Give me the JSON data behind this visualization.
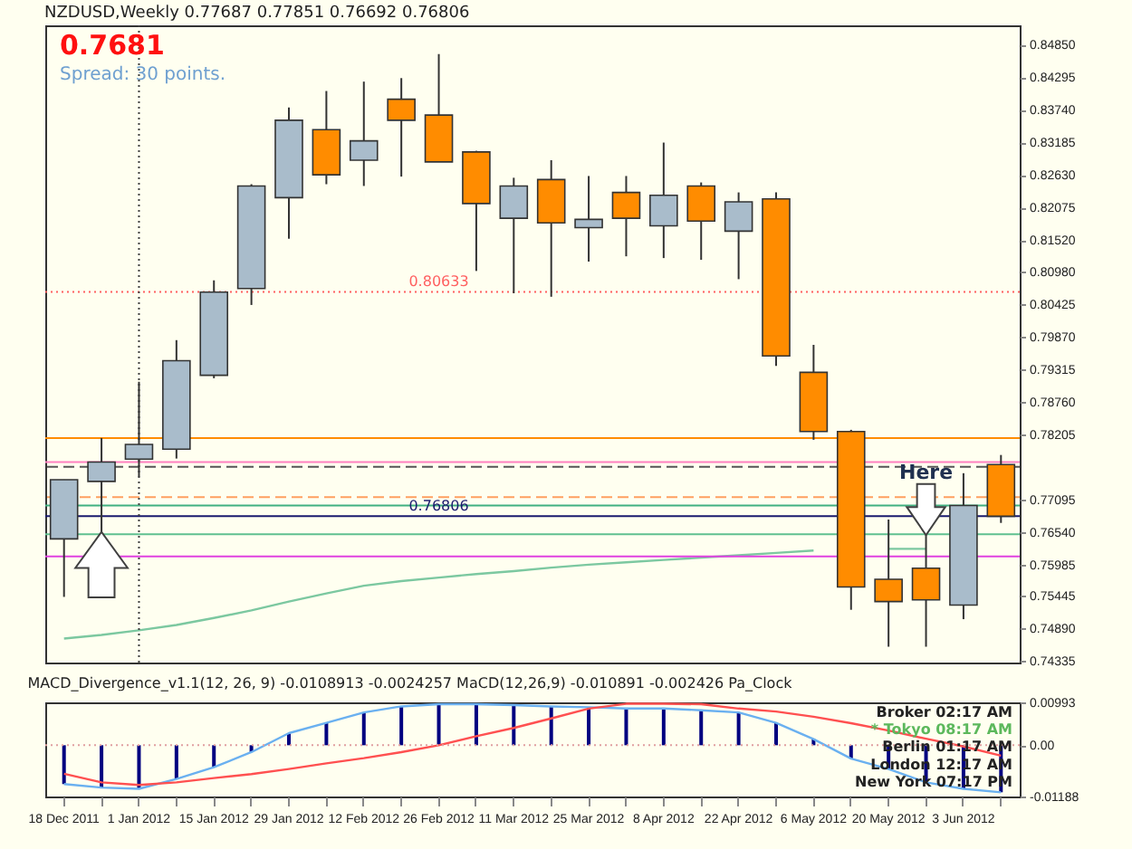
{
  "chart_data": [
    {
      "type": "candlestick",
      "title": "NZDUSD,Weekly 0.77687 0.77851 0.76692 0.76806",
      "annotations": [
        "0.7681",
        "Spread: 30 points.",
        "Here"
      ],
      "categories": [
        "18 Dec 2011",
        null,
        "1 Jan 2012",
        null,
        "15 Jan 2012",
        null,
        "29 Jan 2012",
        null,
        "12 Feb 2012",
        null,
        "26 Feb 2012",
        null,
        "11 Mar 2012",
        null,
        "25 Mar 2012",
        null,
        "8 Apr 2012",
        null,
        "22 Apr 2012",
        null,
        "6 May 2012",
        null,
        "20 May 2012",
        null,
        "3 Jun 2012",
        null
      ],
      "ohlc": [
        [
          0.7642,
          0.7743,
          0.7543,
          0.7743
        ],
        [
          0.774,
          0.7814,
          0.765,
          0.7773
        ],
        [
          0.7778,
          0.791,
          0.7748,
          0.7803
        ],
        [
          0.7795,
          0.7981,
          0.7779,
          0.7946
        ],
        [
          0.7921,
          0.8083,
          0.7916,
          0.8063
        ],
        [
          0.8069,
          0.8247,
          0.8041,
          0.8244
        ],
        [
          0.8224,
          0.8378,
          0.8154,
          0.8356
        ],
        [
          0.834,
          0.8406,
          0.8247,
          0.8263
        ],
        [
          0.8288,
          0.8422,
          0.8244,
          0.8321
        ],
        [
          0.8392,
          0.8428,
          0.826,
          0.8356
        ],
        [
          0.8365,
          0.8469,
          0.8285,
          0.8285
        ],
        [
          0.8302,
          0.8304,
          0.8099,
          0.8214
        ],
        [
          0.8189,
          0.8258,
          0.8061,
          0.8244
        ],
        [
          0.8255,
          0.8288,
          0.8055,
          0.8181
        ],
        [
          0.8173,
          0.8261,
          0.8115,
          0.8187
        ],
        [
          0.8233,
          0.8261,
          0.8124,
          0.8189
        ],
        [
          0.8176,
          0.8318,
          0.8121,
          0.8228
        ],
        [
          0.8244,
          0.825,
          0.8118,
          0.8184
        ],
        [
          0.8167,
          0.8233,
          0.8085,
          0.8217
        ],
        [
          0.8222,
          0.8233,
          0.7937,
          0.7954
        ],
        [
          0.7926,
          0.7973,
          0.7811,
          0.7825
        ],
        [
          0.7825,
          0.7828,
          0.7521,
          0.756
        ],
        [
          0.7573,
          0.7675,
          0.7458,
          0.7535
        ],
        [
          0.7592,
          0.7653,
          0.7458,
          0.7538
        ],
        [
          0.7529,
          0.7754,
          0.7505,
          0.7699
        ],
        [
          0.77687,
          0.77851,
          0.76692,
          0.76806
        ]
      ],
      "colors": [
        "#a9bccb",
        "#a9bccb",
        "#a9bccb",
        "#a9bccb",
        "#a9bccb",
        "#a9bccb",
        "#a9bccb",
        "#ff8c00",
        "#a9bccb",
        "#ff8c00",
        "#ff8c00",
        "#ff8c00",
        "#a9bccb",
        "#ff8c00",
        "#a9bccb",
        "#ff8c00",
        "#a9bccb",
        "#ff8c00",
        "#a9bccb",
        "#ff8c00",
        "#ff8c00",
        "#ff8c00",
        "#ff8c00",
        "#ff8c00",
        "#a9bccb",
        "#ff8c00"
      ],
      "series": [
        {
          "type": "line",
          "color": "#7cc8a0",
          "values": [
            0.7472,
            0.7478,
            0.7486,
            0.7495,
            0.7507,
            0.752,
            0.7535,
            0.7549,
            0.7562,
            0.757,
            0.7576,
            0.7582,
            0.7587,
            0.7593,
            0.7598,
            0.7602,
            0.7606,
            0.761,
            0.7614,
            0.7618,
            0.7622,
            null,
            0.7625,
            0.7625,
            null,
            null
          ]
        }
      ],
      "ylim": [
        0.7431,
        0.8518
      ],
      "yticks": [
        {
          "value": 0.8485,
          "label": "0.84850"
        },
        {
          "value": 0.84295,
          "label": "0.84295"
        },
        {
          "value": 0.8374,
          "label": "0.83740"
        },
        {
          "value": 0.83185,
          "label": "0.83185"
        },
        {
          "value": 0.8263,
          "label": "0.82630"
        },
        {
          "value": 0.82075,
          "label": "0.82075"
        },
        {
          "value": 0.8152,
          "label": "0.81520"
        },
        {
          "value": 0.8098,
          "label": "0.80980"
        },
        {
          "value": 0.80425,
          "label": "0.80425"
        },
        {
          "value": 0.7987,
          "label": "0.79870"
        },
        {
          "value": 0.79315,
          "label": "0.79315"
        },
        {
          "value": 0.7876,
          "label": "0.78760"
        },
        {
          "value": 0.78205,
          "label": "0.78205"
        },
        {
          "value": 0.77095,
          "label": "0.77095"
        },
        {
          "value": 0.7654,
          "label": "0.76540"
        },
        {
          "value": 0.75985,
          "label": "0.75985"
        },
        {
          "value": 0.75445,
          "label": "0.75445"
        },
        {
          "value": 0.7489,
          "label": "0.74890"
        },
        {
          "value": 0.74335,
          "label": "0.74335"
        }
      ],
      "tick_labels": "y",
      "ref_lines": [
        {
          "axis": "y",
          "value": 0.80633,
          "label": "0.80633",
          "color": "#ff6060",
          "line_style": "dotted"
        },
        {
          "axis": "y",
          "value": 0.7814,
          "color": "#ff8c00",
          "line_style": "solid"
        },
        {
          "axis": "y",
          "value": 0.7773,
          "color": "#ff80c0",
          "line_style": "solid"
        },
        {
          "axis": "y",
          "value": 0.7765,
          "color": "#555555",
          "line_style": "dashed"
        },
        {
          "axis": "y",
          "value": 0.7713,
          "color": "#ffa060",
          "line_style": "dashed"
        },
        {
          "axis": "y",
          "value": 0.7699,
          "color": "#40b080",
          "line_style": "solid"
        },
        {
          "axis": "y",
          "value": 0.76806,
          "label": "0.76806",
          "color": "#1a1a6e",
          "line_style": "solid"
        },
        {
          "axis": "y",
          "value": 0.765,
          "color": "#60c090",
          "line_style": "solid"
        },
        {
          "axis": "y",
          "value": 0.7612,
          "color": "#e040e0",
          "line_style": "solid"
        },
        {
          "axis": "x",
          "value": "1 Jan 2012",
          "color": "#404040",
          "line_style": "dotted"
        }
      ]
    },
    {
      "type": "bar",
      "title": "MACD_Divergence_v1.1(12, 26, 9) -0.0108913 -0.0024257 MaCD(12,26,9) -0.010891 -0.002426 Pa_Clock",
      "annotations": [
        "Broker 02:17 AM",
        "* Tokyo 08:17 AM",
        "Berlin 01:17 AM",
        "London 12:17 AM",
        "New York 07:17 PM"
      ],
      "categories": [
        "18 Dec 2011",
        null,
        "1 Jan 2012",
        null,
        "15 Jan 2012",
        null,
        "29 Jan 2012",
        null,
        "12 Feb 2012",
        null,
        "26 Feb 2012",
        null,
        "11 Mar 2012",
        null,
        "25 Mar 2012",
        null,
        "8 Apr 2012",
        null,
        "22 Apr 2012",
        null,
        "6 May 2012",
        null,
        "20 May 2012",
        null,
        "3 Jun 2012",
        null
      ],
      "series": [
        {
          "type": "bar",
          "color": "#000080",
          "values": [
            -0.009,
            -0.0098,
            -0.0101,
            -0.0078,
            -0.0051,
            -0.0016,
            0.0028,
            0.0052,
            0.0076,
            0.009,
            0.0095,
            0.0095,
            0.0093,
            0.009,
            0.0088,
            0.0085,
            0.0085,
            0.0081,
            0.0076,
            0.0052,
            0.0014,
            -0.0031,
            -0.0055,
            -0.0086,
            -0.0101,
            -0.0109
          ]
        },
        {
          "type": "line",
          "color": "#6ab0f0",
          "values": [
            -0.009,
            -0.0098,
            -0.0101,
            -0.0078,
            -0.0051,
            -0.0016,
            0.0028,
            0.0052,
            0.0076,
            0.009,
            0.0095,
            0.0095,
            0.0093,
            0.009,
            0.0088,
            0.0085,
            0.0085,
            0.0081,
            0.0076,
            0.0052,
            0.0014,
            -0.0031,
            -0.0055,
            -0.0086,
            -0.0101,
            -0.0109
          ]
        },
        {
          "type": "line",
          "color": "#ff5050",
          "values": [
            -0.0066,
            -0.0086,
            -0.0092,
            -0.0086,
            -0.0076,
            -0.0067,
            -0.0055,
            -0.0042,
            -0.003,
            -0.0016,
            0,
            0.0021,
            0.004,
            0.0062,
            0.0085,
            0.0096,
            0.0096,
            0.0095,
            0.0085,
            0.0078,
            0.0066,
            0.0051,
            0.0034,
            0.0015,
            -0.0003,
            -0.0024
          ]
        }
      ],
      "ylim": [
        -0.01188,
        0.00993
      ],
      "yticks": [
        {
          "value": 0.00993,
          "label": "0.00993"
        },
        {
          "value": 0,
          "label": "0.00"
        },
        {
          "value": -0.01188,
          "label": "-0.01188"
        }
      ],
      "ref_lines": [
        {
          "axis": "y",
          "value": 0,
          "color": "#e0a0a0",
          "line_style": "dotted"
        }
      ]
    }
  ]
}
